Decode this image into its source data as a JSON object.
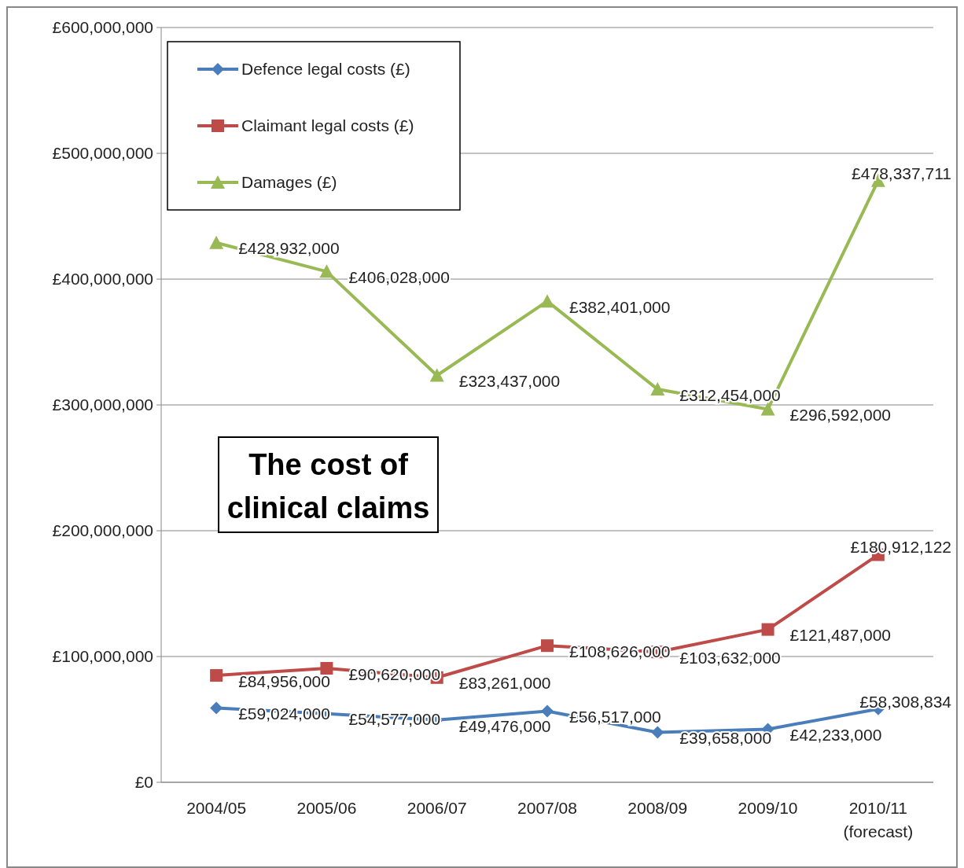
{
  "chart_data": {
    "type": "line",
    "title": "The cost of\nclinical claims",
    "categories": [
      "2004/05",
      "2005/06",
      "2006/07",
      "2007/08",
      "2008/09",
      "2009/10",
      "2010/11\n(forecast)"
    ],
    "series": [
      {
        "name": "Defence legal costs (£)",
        "color": "#4a7ebb",
        "marker": "diamond",
        "values": [
          59024000,
          54577000,
          49476000,
          56517000,
          39658000,
          42233000,
          58308834
        ],
        "value_labels": [
          "£59,024,000",
          "£54,577,000",
          "£49,476,000",
          "£56,517,000",
          "£39,658,000",
          "£42,233,000",
          "£58,308,834"
        ]
      },
      {
        "name": "Claimant legal costs (£)",
        "color": "#be4b48",
        "marker": "square",
        "values": [
          84956000,
          90620000,
          83261000,
          108626000,
          103632000,
          121487000,
          180912122
        ],
        "value_labels": [
          "£84,956,000",
          "£90,620,000",
          "£83,261,000",
          "£108,626,000",
          "£103,632,000",
          "£121,487,000",
          "£180,912,122"
        ]
      },
      {
        "name": "Damages (£)",
        "color": "#98b954",
        "marker": "triangle",
        "values": [
          428932000,
          406028000,
          323437000,
          382401000,
          312454000,
          296592000,
          478337711
        ],
        "value_labels": [
          "£428,932,000",
          "£406,028,000",
          "£323,437,000",
          "£382,401,000",
          "£312,454,000",
          "£296,592,000",
          "£478,337,711"
        ]
      }
    ],
    "ylim": [
      0,
      600000000
    ],
    "yticks": [
      {
        "value": 0,
        "label": "£0"
      },
      {
        "value": 100000000,
        "label": "£100,000,000"
      },
      {
        "value": 200000000,
        "label": "£200,000,000"
      },
      {
        "value": 300000000,
        "label": "£300,000,000"
      },
      {
        "value": 400000000,
        "label": "£400,000,000"
      },
      {
        "value": 500000000,
        "label": "£500,000,000"
      },
      {
        "value": 600000000,
        "label": "£600,000,000"
      }
    ],
    "grid": "y",
    "legend": "top left",
    "line_style": "solid"
  }
}
